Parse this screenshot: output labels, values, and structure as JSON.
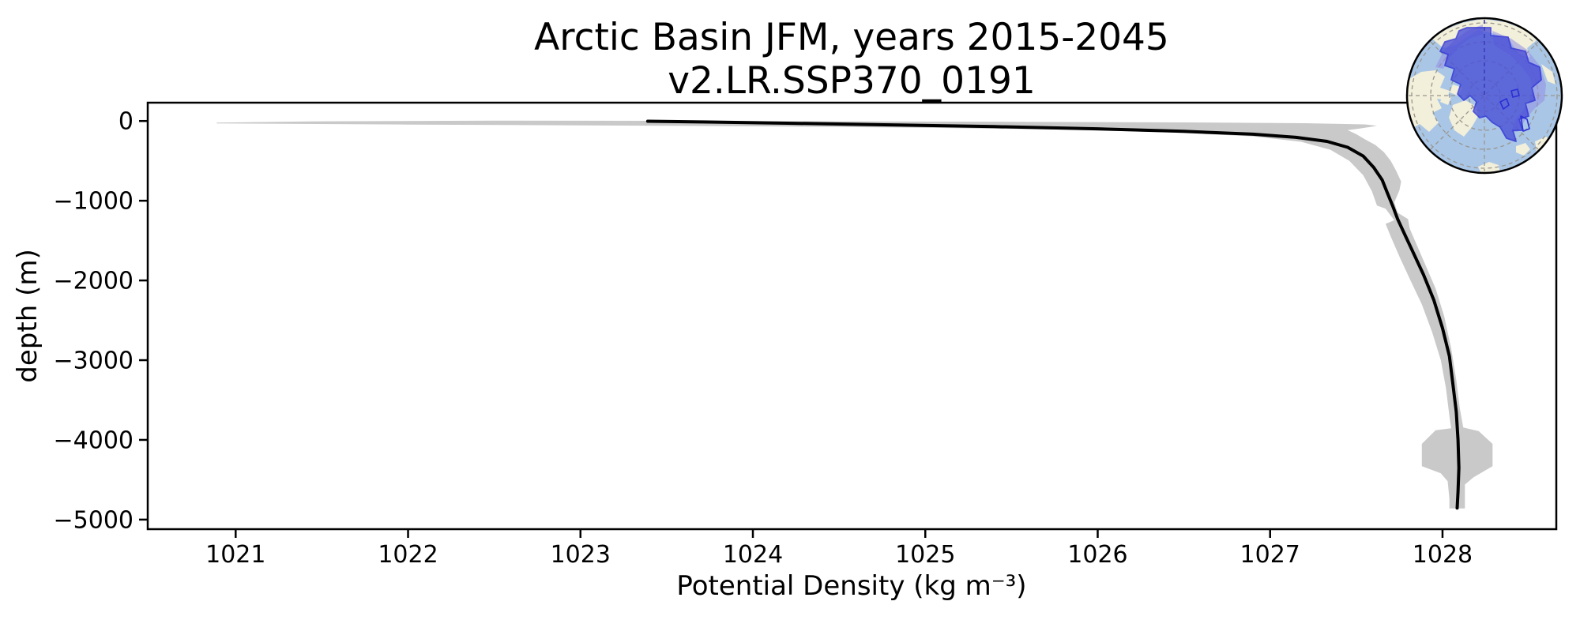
{
  "chart": {
    "title_line1": "Arctic Basin JFM, years 2015-2045",
    "title_line2": "v2.LR.SSP370_0191",
    "xlabel": "Potential Density (kg m⁻³)",
    "ylabel": "depth (m)"
  },
  "chart_data": {
    "type": "line",
    "title": "Arctic Basin JFM, years 2015-2045 / v2.LR.SSP370_0191",
    "xlabel": "Potential Density (kg m⁻³)",
    "ylabel": "depth (m)",
    "grid": false,
    "legend": null,
    "xlim": [
      1020.49,
      1028.66
    ],
    "ylim": [
      -5120,
      230
    ],
    "xticks": {
      "values": [
        1021,
        1022,
        1023,
        1024,
        1025,
        1026,
        1027,
        1028
      ],
      "labels": [
        "1021",
        "1022",
        "1023",
        "1024",
        "1025",
        "1026",
        "1027",
        "1028"
      ]
    },
    "yticks": {
      "values": [
        0,
        -1000,
        -2000,
        -3000,
        -4000,
        -5000
      ],
      "labels": [
        "0",
        "−1000",
        "−2000",
        "−3000",
        "−4000",
        "−5000"
      ]
    },
    "series": [
      {
        "name": "mean-density-profile",
        "color": "#000000",
        "points": [
          [
            1023.39,
            -3
          ],
          [
            1023.7,
            -12
          ],
          [
            1024.2,
            -28
          ],
          [
            1024.8,
            -48
          ],
          [
            1025.4,
            -70
          ],
          [
            1026.0,
            -98
          ],
          [
            1026.5,
            -130
          ],
          [
            1026.9,
            -165
          ],
          [
            1027.15,
            -205
          ],
          [
            1027.33,
            -255
          ],
          [
            1027.45,
            -330
          ],
          [
            1027.54,
            -440
          ],
          [
            1027.6,
            -580
          ],
          [
            1027.65,
            -740
          ],
          [
            1027.68,
            -900
          ],
          [
            1027.71,
            -1060
          ],
          [
            1027.74,
            -1230
          ],
          [
            1027.78,
            -1420
          ],
          [
            1027.83,
            -1650
          ],
          [
            1027.89,
            -1930
          ],
          [
            1027.95,
            -2250
          ],
          [
            1028.0,
            -2600
          ],
          [
            1028.04,
            -2950
          ],
          [
            1028.06,
            -3300
          ],
          [
            1028.08,
            -3650
          ],
          [
            1028.09,
            -4000
          ],
          [
            1028.095,
            -4350
          ],
          [
            1028.09,
            -4650
          ],
          [
            1028.085,
            -4855
          ]
        ]
      }
    ],
    "band": {
      "name": "ensemble-spread-band",
      "color": "#c9c9c9",
      "polygon": [
        [
          1020.89,
          -30
        ],
        [
          1022.0,
          -44
        ],
        [
          1023.0,
          -54
        ],
        [
          1024.0,
          -66
        ],
        [
          1025.0,
          -84
        ],
        [
          1025.8,
          -108
        ],
        [
          1026.4,
          -142
        ],
        [
          1026.9,
          -192
        ],
        [
          1027.18,
          -260
        ],
        [
          1027.35,
          -360
        ],
        [
          1027.46,
          -500
        ],
        [
          1027.54,
          -680
        ],
        [
          1027.59,
          -880
        ],
        [
          1027.62,
          -1060
        ],
        [
          1027.67,
          -1100
        ],
        [
          1027.72,
          -1245
        ],
        [
          1027.67,
          -1290
        ],
        [
          1027.7,
          -1450
        ],
        [
          1027.75,
          -1700
        ],
        [
          1027.81,
          -1980
        ],
        [
          1027.88,
          -2300
        ],
        [
          1027.94,
          -2650
        ],
        [
          1027.99,
          -3000
        ],
        [
          1028.02,
          -3350
        ],
        [
          1028.04,
          -3700
        ],
        [
          1028.05,
          -3855
        ],
        [
          1027.96,
          -3880
        ],
        [
          1027.88,
          -4050
        ],
        [
          1027.88,
          -4330
        ],
        [
          1027.99,
          -4420
        ],
        [
          1028.03,
          -4520
        ],
        [
          1028.04,
          -4740
        ],
        [
          1028.04,
          -4860
        ],
        [
          1028.13,
          -4860
        ],
        [
          1028.13,
          -4560
        ],
        [
          1028.18,
          -4470
        ],
        [
          1028.29,
          -4330
        ],
        [
          1028.29,
          -4050
        ],
        [
          1028.21,
          -3890
        ],
        [
          1028.12,
          -3845
        ],
        [
          1028.1,
          -3600
        ],
        [
          1028.08,
          -3250
        ],
        [
          1028.05,
          -2850
        ],
        [
          1028.01,
          -2450
        ],
        [
          1027.96,
          -2100
        ],
        [
          1027.9,
          -1800
        ],
        [
          1027.85,
          -1550
        ],
        [
          1027.81,
          -1350
        ],
        [
          1027.8,
          -1230
        ],
        [
          1027.74,
          -1150
        ],
        [
          1027.72,
          -1020
        ],
        [
          1027.75,
          -870
        ],
        [
          1027.76,
          -760
        ],
        [
          1027.73,
          -620
        ],
        [
          1027.7,
          -500
        ],
        [
          1027.66,
          -390
        ],
        [
          1027.61,
          -300
        ],
        [
          1027.55,
          -230
        ],
        [
          1027.5,
          -165
        ],
        [
          1027.45,
          -115
        ],
        [
          1027.52,
          -95
        ],
        [
          1027.58,
          -75
        ],
        [
          1027.62,
          -60
        ],
        [
          1027.55,
          -42
        ],
        [
          1027.2,
          -28
        ],
        [
          1026.5,
          -18
        ],
        [
          1025.5,
          -10
        ],
        [
          1024.5,
          -4
        ],
        [
          1023.5,
          2
        ],
        [
          1022.5,
          4
        ],
        [
          1021.5,
          -4
        ],
        [
          1020.89,
          -20
        ]
      ]
    }
  },
  "inset_map": {
    "name": "arctic-basin-region-inset",
    "colors": {
      "ocean": "#a9c6e6",
      "land": "#f2efda",
      "basin_fill": "#4a50d6",
      "basin_outline": "#2b2fd4",
      "sector_overlay": "#918ee3"
    }
  }
}
